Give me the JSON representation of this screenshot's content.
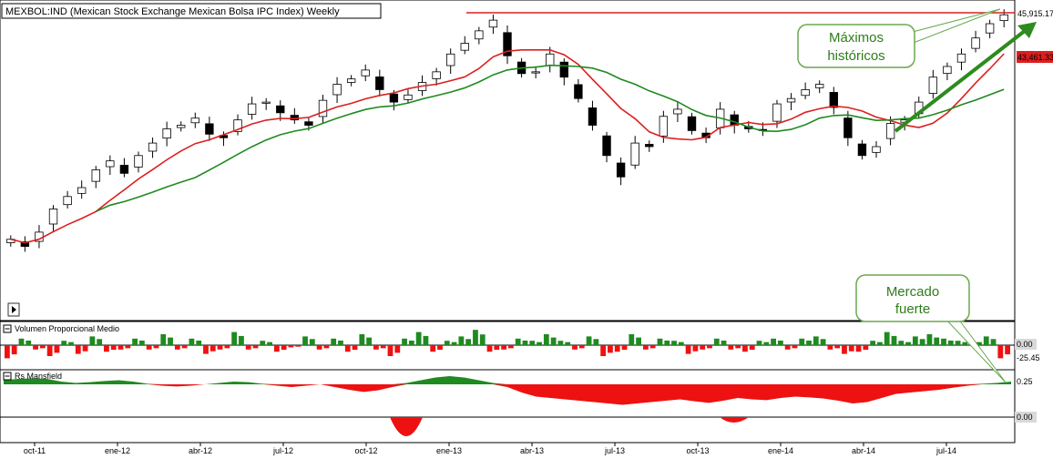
{
  "chart_data": {
    "type": "candlestick",
    "title": "MEXBOL:IND (Mexican Stock Exchange Mexican Bolsa IPC Index) Weekly",
    "x_tick_labels": [
      "oct-11",
      "ene-12",
      "abr-12",
      "jul-12",
      "oct-12",
      "ene-13",
      "abr-13",
      "jul-13",
      "oct-13",
      "ene-14",
      "abr-14",
      "jul-14"
    ],
    "price_tags": [
      "45,915.17",
      "43,461.33"
    ],
    "price_anchor_values": [
      45915.17,
      43461.33
    ],
    "resistance_value": 45915.17,
    "close_path": [
      33200,
      32800,
      33600,
      34900,
      35600,
      36100,
      37100,
      37600,
      36900,
      37900,
      38600,
      39400,
      39600,
      40000,
      39100,
      38900,
      39900,
      40800,
      40900,
      40300,
      39900,
      39600,
      41000,
      41900,
      42200,
      42700,
      41600,
      40900,
      41300,
      42000,
      42600,
      43600,
      44200,
      44900,
      45500,
      43500,
      42500,
      42600,
      43600,
      42300,
      41100,
      39600,
      37900,
      36700,
      38600,
      38400,
      40100,
      40500,
      39300,
      38900,
      40500,
      39600,
      39400,
      39300,
      40800,
      41100,
      41600,
      41900,
      40600,
      38900,
      37900,
      38400,
      39700,
      39900,
      40900,
      42300,
      42900,
      43600,
      44500,
      45300,
      45800
    ],
    "volume_path": [
      -0.6,
      0.3,
      -0.2,
      -0.5,
      0.2,
      -0.4,
      0.4,
      -0.3,
      -0.2,
      0.3,
      -0.2,
      0.5,
      -0.2,
      0.3,
      -0.4,
      -0.2,
      0.6,
      -0.2,
      0.2,
      -0.3,
      -0.1,
      0.4,
      -0.2,
      0.3,
      -0.3,
      0.5,
      -0.2,
      -0.5,
      0.3,
      0.6,
      -0.3,
      0.2,
      0.4,
      0.7,
      -0.3,
      -0.2,
      0.3,
      0.2,
      0.5,
      0.2,
      -0.2,
      0.4,
      -0.5,
      -0.3,
      0.5,
      -0.2,
      0.3,
      0.2,
      -0.4,
      -0.2,
      0.3,
      -0.2,
      -0.3,
      0.2,
      0.3,
      -0.2,
      0.3,
      0.4,
      -0.2,
      -0.4,
      -0.3,
      0.2,
      0.6,
      0.2,
      0.4,
      0.5,
      0.3,
      0.2,
      0.2,
      0.4,
      -0.6
    ],
    "rs_path": [
      0.15,
      0.2,
      0.22,
      0.2,
      0.1,
      0.05,
      0.08,
      0.12,
      0.15,
      0.1,
      0.02,
      -0.05,
      -0.08,
      -0.05,
      0.0,
      0.05,
      0.1,
      0.08,
      0.02,
      -0.05,
      -0.1,
      -0.05,
      0.0,
      -0.1,
      -0.2,
      -0.28,
      -0.22,
      -0.1,
      0.05,
      0.15,
      0.25,
      0.3,
      0.25,
      0.15,
      0.05,
      -0.1,
      -0.3,
      -0.45,
      -0.5,
      -0.55,
      -0.6,
      -0.65,
      -0.7,
      -0.75,
      -0.7,
      -0.65,
      -0.6,
      -0.55,
      -0.62,
      -0.68,
      -0.6,
      -0.5,
      -0.55,
      -0.58,
      -0.5,
      -0.45,
      -0.48,
      -0.52,
      -0.6,
      -0.7,
      -0.65,
      -0.5,
      -0.35,
      -0.3,
      -0.25,
      -0.2,
      -0.12,
      -0.05,
      0.02,
      0.05,
      0.1
    ],
    "volume_panel": {
      "label": "Volumen Proporcional Medio",
      "value_tags": [
        "0.00",
        "-25.45"
      ]
    },
    "rs_panel": {
      "label": "Rs Mansfield",
      "value_tags": [
        "0.25",
        "0.00"
      ]
    },
    "series": [
      {
        "kind": "candles",
        "color_up": "#000000",
        "color_down": "#000000"
      },
      {
        "kind": "moving_average",
        "color": "#dd1e1e"
      },
      {
        "kind": "moving_average",
        "color": "#1f8a1f"
      },
      {
        "kind": "resistance_line",
        "color": "#dd1e1e"
      }
    ],
    "annotations": [
      {
        "text_lines": [
          "Máximos",
          "históricos"
        ],
        "type": "callout"
      },
      {
        "text_lines": [
          "Mercado",
          "fuerte"
        ],
        "type": "callout"
      },
      {
        "type": "arrow",
        "color": "#2e8b1f"
      }
    ],
    "colors": {
      "positive": "#1f8a1f",
      "negative": "#ee1111",
      "callout_border": "#6aa84f",
      "callout_fill": "#ffffff",
      "callout_text": "#2e7d1a",
      "tag_red": "#dd1e1e",
      "tag_gray": "#d9d9d9"
    }
  }
}
